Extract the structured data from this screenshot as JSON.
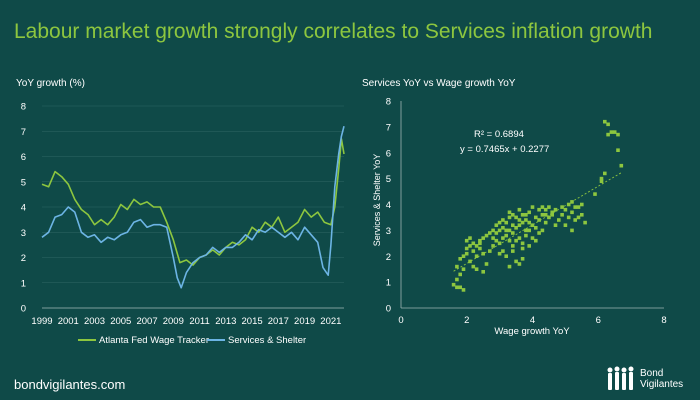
{
  "page": {
    "title": "Labour market growth strongly correlates to Services inflation growth",
    "footer": "bondvigilantes.com",
    "logo": {
      "line1": "Bond",
      "line2": "Vigilantes"
    }
  },
  "colors": {
    "background": "#0f4a48",
    "green": "#8dc63f",
    "blue": "#6cb4e4",
    "title": "#8dc63f",
    "text": "#ffffff"
  },
  "chart_data": [
    {
      "type": "line",
      "title": "YoY growth (%)",
      "xlabel": "",
      "ylabel": "YoY growth (%)",
      "ylim": [
        0,
        8
      ],
      "xlim": [
        1999,
        2022
      ],
      "y_ticks": [
        "0",
        "1",
        "2",
        "3",
        "4",
        "5",
        "6",
        "7",
        "8"
      ],
      "x_ticks": [
        "1999",
        "2001",
        "2003",
        "2005",
        "2007",
        "2009",
        "2011",
        "2013",
        "2015",
        "2017",
        "2019",
        "2021"
      ],
      "legend": "bottom",
      "series": [
        {
          "name": "Atlanta Fed Wage Tracker",
          "color": "#8dc63f",
          "x": [
            1999,
            1999.5,
            2000,
            2000.5,
            2001,
            2001.5,
            2002,
            2002.5,
            2003,
            2003.5,
            2004,
            2004.5,
            2005,
            2005.5,
            2006,
            2006.5,
            2007,
            2007.5,
            2008,
            2008.5,
            2009,
            2009.5,
            2010,
            2010.5,
            2011,
            2011.5,
            2012,
            2012.5,
            2013,
            2013.5,
            2014,
            2014.5,
            2015,
            2015.5,
            2016,
            2016.5,
            2017,
            2017.5,
            2018,
            2018.5,
            2019,
            2019.5,
            2020,
            2020.5,
            2021,
            2021.3,
            2021.6,
            2021.8,
            2022
          ],
          "values": [
            4.9,
            4.8,
            5.4,
            5.2,
            4.9,
            4.3,
            3.9,
            3.7,
            3.3,
            3.5,
            3.3,
            3.6,
            4.1,
            3.9,
            4.3,
            4.1,
            4.2,
            4.0,
            4.0,
            3.4,
            2.7,
            1.8,
            1.9,
            1.7,
            2.0,
            2.1,
            2.3,
            2.1,
            2.4,
            2.6,
            2.5,
            2.7,
            3.2,
            3.0,
            3.4,
            3.2,
            3.6,
            3.0,
            3.2,
            3.4,
            3.9,
            3.6,
            3.8,
            3.4,
            3.3,
            4.0,
            5.5,
            6.7,
            6.1
          ]
        },
        {
          "name": "Services & Shelter",
          "color": "#6cb4e4",
          "x": [
            1999,
            1999.5,
            2000,
            2000.5,
            2001,
            2001.5,
            2002,
            2002.5,
            2003,
            2003.5,
            2004,
            2004.5,
            2005,
            2005.5,
            2006,
            2006.5,
            2007,
            2007.5,
            2008,
            2008.5,
            2009,
            2009.3,
            2009.6,
            2010,
            2010.5,
            2011,
            2011.5,
            2012,
            2012.5,
            2013,
            2013.5,
            2014,
            2014.5,
            2015,
            2015.5,
            2016,
            2016.5,
            2017,
            2017.5,
            2018,
            2018.5,
            2019,
            2019.5,
            2020,
            2020.4,
            2020.8,
            2021,
            2021.3,
            2021.6,
            2021.8,
            2022
          ],
          "values": [
            2.8,
            3.0,
            3.6,
            3.7,
            4.0,
            3.8,
            3.0,
            2.8,
            2.9,
            2.6,
            2.8,
            2.7,
            2.9,
            3.0,
            3.4,
            3.5,
            3.2,
            3.3,
            3.3,
            3.2,
            2.0,
            1.2,
            0.8,
            1.4,
            1.8,
            2.0,
            2.1,
            2.4,
            2.2,
            2.4,
            2.4,
            2.6,
            2.9,
            2.7,
            3.1,
            3.0,
            3.2,
            3.0,
            2.8,
            3.0,
            2.7,
            3.2,
            2.9,
            2.6,
            1.6,
            1.3,
            2.5,
            4.8,
            6.1,
            6.8,
            7.2
          ]
        }
      ]
    },
    {
      "type": "scatter",
      "title": "Services  YoY vs Wage growth YoY",
      "xlabel": "Wage growth YoY",
      "ylabel": "Services & Shelter YoY",
      "xlim": [
        0,
        8
      ],
      "ylim": [
        0,
        8
      ],
      "x_ticks": [
        "0",
        "2",
        "4",
        "6",
        "8"
      ],
      "y_ticks": [
        "0",
        "1",
        "2",
        "3",
        "4",
        "5",
        "6",
        "7",
        "8"
      ],
      "trendline": {
        "slope": 0.7465,
        "intercept": 0.2277,
        "x_range": [
          1.6,
          6.7
        ],
        "color": "#8dc63f"
      },
      "annotations": [
        "R² = 0.6894",
        "y = 0.7465x + 0.2277"
      ],
      "point_color": "#8dc63f",
      "points": [
        [
          1.6,
          0.9
        ],
        [
          1.7,
          0.8
        ],
        [
          1.8,
          0.8
        ],
        [
          1.9,
          0.7
        ],
        [
          1.7,
          1.1
        ],
        [
          1.8,
          1.3
        ],
        [
          1.9,
          1.5
        ],
        [
          1.7,
          1.6
        ],
        [
          1.8,
          1.9
        ],
        [
          1.9,
          2.0
        ],
        [
          2.0,
          2.1
        ],
        [
          2.0,
          2.3
        ],
        [
          2.1,
          2.4
        ],
        [
          2.2,
          2.5
        ],
        [
          2.3,
          2.4
        ],
        [
          2.4,
          2.6
        ],
        [
          2.2,
          2.2
        ],
        [
          2.3,
          2.0
        ],
        [
          2.4,
          2.3
        ],
        [
          2.5,
          2.1
        ],
        [
          2.1,
          1.8
        ],
        [
          2.2,
          1.6
        ],
        [
          2.3,
          1.5
        ],
        [
          2.5,
          1.4
        ],
        [
          2.6,
          1.7
        ],
        [
          2.0,
          2.6
        ],
        [
          2.1,
          2.7
        ],
        [
          2.4,
          2.5
        ],
        [
          2.7,
          2.2
        ],
        [
          2.8,
          2.4
        ],
        [
          2.9,
          2.6
        ],
        [
          3.0,
          2.5
        ],
        [
          3.1,
          2.7
        ],
        [
          3.2,
          2.8
        ],
        [
          3.3,
          3.0
        ],
        [
          3.4,
          2.9
        ],
        [
          3.5,
          3.1
        ],
        [
          3.6,
          3.2
        ],
        [
          3.7,
          3.3
        ],
        [
          3.8,
          3.4
        ],
        [
          3.3,
          2.6
        ],
        [
          3.4,
          2.4
        ],
        [
          3.5,
          2.6
        ],
        [
          3.6,
          2.7
        ],
        [
          3.7,
          2.5
        ],
        [
          3.8,
          2.8
        ],
        [
          3.9,
          3.0
        ],
        [
          4.0,
          3.2
        ],
        [
          3.2,
          3.3
        ],
        [
          3.3,
          3.5
        ],
        [
          3.4,
          3.6
        ],
        [
          3.5,
          3.5
        ],
        [
          3.6,
          3.8
        ],
        [
          3.7,
          3.6
        ],
        [
          3.9,
          3.7
        ],
        [
          4.0,
          3.9
        ],
        [
          4.1,
          3.5
        ],
        [
          4.2,
          3.4
        ],
        [
          4.3,
          3.6
        ],
        [
          4.4,
          3.3
        ],
        [
          4.5,
          3.5
        ],
        [
          4.6,
          3.7
        ],
        [
          4.7,
          3.2
        ],
        [
          4.8,
          3.4
        ],
        [
          3.0,
          2.1
        ],
        [
          3.1,
          2.2
        ],
        [
          3.2,
          2.0
        ],
        [
          3.4,
          2.2
        ],
        [
          3.5,
          1.8
        ],
        [
          3.6,
          1.7
        ],
        [
          3.7,
          1.9
        ],
        [
          3.3,
          1.6
        ],
        [
          3.0,
          3.0
        ],
        [
          2.9,
          2.9
        ],
        [
          2.8,
          2.7
        ],
        [
          3.1,
          3.1
        ],
        [
          3.2,
          3.0
        ],
        [
          3.4,
          3.2
        ],
        [
          3.6,
          3.4
        ],
        [
          3.8,
          3.0
        ],
        [
          3.9,
          3.3
        ],
        [
          4.1,
          3.1
        ],
        [
          4.2,
          2.9
        ],
        [
          4.3,
          3.0
        ],
        [
          4.0,
          2.7
        ],
        [
          4.1,
          2.6
        ],
        [
          3.9,
          2.4
        ],
        [
          3.7,
          2.3
        ],
        [
          4.9,
          3.6
        ],
        [
          5.0,
          3.8
        ],
        [
          5.1,
          3.5
        ],
        [
          5.2,
          3.7
        ],
        [
          5.3,
          3.4
        ],
        [
          5.4,
          3.9
        ],
        [
          5.5,
          3.6
        ],
        [
          5.6,
          3.3
        ],
        [
          5.1,
          4.0
        ],
        [
          5.2,
          4.1
        ],
        [
          5.0,
          3.2
        ],
        [
          5.2,
          3.0
        ],
        [
          4.9,
          3.9
        ],
        [
          5.3,
          3.9
        ],
        [
          5.4,
          3.5
        ],
        [
          5.5,
          4.0
        ],
        [
          2.5,
          2.7
        ],
        [
          2.6,
          2.8
        ],
        [
          2.7,
          2.9
        ],
        [
          2.8,
          3.0
        ],
        [
          2.9,
          3.2
        ],
        [
          3.0,
          3.3
        ],
        [
          3.1,
          3.4
        ],
        [
          3.3,
          3.7
        ],
        [
          4.4,
          3.8
        ],
        [
          4.5,
          3.9
        ],
        [
          4.6,
          3.6
        ],
        [
          4.7,
          3.8
        ],
        [
          4.2,
          3.8
        ],
        [
          4.3,
          3.9
        ],
        [
          4.4,
          3.6
        ],
        [
          3.8,
          3.6
        ],
        [
          5.9,
          4.4
        ],
        [
          6.1,
          4.9
        ],
        [
          6.2,
          5.2
        ],
        [
          6.3,
          6.7
        ],
        [
          6.4,
          6.8
        ],
        [
          6.5,
          6.8
        ],
        [
          6.6,
          6.7
        ],
        [
          6.2,
          7.2
        ],
        [
          6.3,
          7.1
        ],
        [
          6.6,
          6.1
        ],
        [
          6.7,
          5.5
        ],
        [
          6.1,
          5.0
        ]
      ]
    }
  ]
}
